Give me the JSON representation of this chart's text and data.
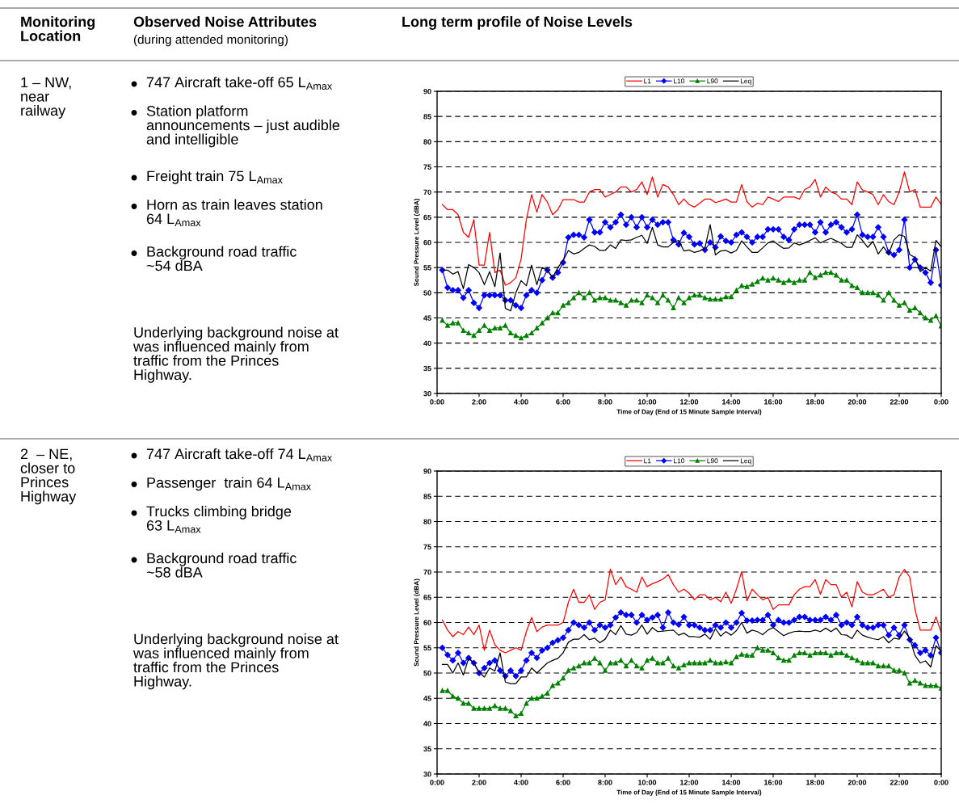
{
  "chart_data": [
    {
      "type": "other",
      "annotations": [
        "Monitoring\nLocation",
        "Observed Noise Attributes",
        "(during attended monitoring)",
        "Long term profile of Noise Levels"
      ]
    },
    {
      "type": "line",
      "xlabel": "Time of Day (End of 15 Minute Sample Interval)",
      "ylabel": "Sound Pressure Level (dBA)",
      "annotations": [
        "1 – NW,\nnear\nrailway",
        "747 Aircraft take-off 65 L$_{Amax}$",
        "Station platform\nannouncements – just audible\nand intelligible",
        "Freight train 75 L$_{Amax}$",
        "Horn as train leaves station\n64 L$_{Amax}$",
        "Background road traffic\n~54 dBA",
        "Underlying background noise at\nwas influenced mainly from\ntraffic from the Princes\nHighway."
      ],
      "x": [
        0.25,
        0.5,
        0.75,
        1,
        1.25,
        1.5,
        1.75,
        2,
        2.25,
        2.5,
        2.75,
        3,
        3.25,
        3.5,
        3.75,
        4,
        4.25,
        4.5,
        4.75,
        5,
        5.25,
        5.5,
        5.75,
        6,
        6.25,
        6.5,
        6.75,
        7,
        7.25,
        7.5,
        7.75,
        8,
        8.25,
        8.5,
        8.75,
        9,
        9.25,
        9.5,
        9.75,
        10,
        10.25,
        10.5,
        10.75,
        11,
        11.25,
        11.5,
        11.75,
        12,
        12.25,
        12.5,
        12.75,
        13,
        13.25,
        13.5,
        13.75,
        14,
        14.25,
        14.5,
        14.75,
        15,
        15.25,
        15.5,
        15.75,
        16,
        16.25,
        16.5,
        16.75,
        17,
        17.25,
        17.5,
        17.75,
        18,
        18.25,
        18.5,
        18.75,
        19,
        19.25,
        19.5,
        19.75,
        20,
        20.25,
        20.5,
        20.75,
        21,
        21.25,
        21.5,
        21.75,
        22,
        22.25,
        22.5,
        22.75,
        23,
        23.25,
        23.5,
        23.75,
        24
      ],
      "xlim": [
        0,
        24
      ],
      "xticks": [
        {
          "value": 0,
          "label": "0:00"
        },
        {
          "value": 2,
          "label": "2:00"
        },
        {
          "value": 4,
          "label": "4:00"
        },
        {
          "value": 6,
          "label": "6:00"
        },
        {
          "value": 8,
          "label": "8:00"
        },
        {
          "value": 10,
          "label": "10:00"
        },
        {
          "value": 12,
          "label": "12:00"
        },
        {
          "value": 14,
          "label": "14:00"
        },
        {
          "value": 16,
          "label": "16:00"
        },
        {
          "value": 18,
          "label": "18:00"
        },
        {
          "value": 20,
          "label": "20:00"
        },
        {
          "value": 22,
          "label": "22:00"
        },
        {
          "value": 24,
          "label": "0:00"
        }
      ],
      "ylim": [
        30,
        90
      ],
      "yticks": [
        30,
        35,
        40,
        45,
        50,
        55,
        60,
        65,
        70,
        75,
        80,
        85,
        90
      ],
      "grid": "y",
      "legend": "top",
      "series": [
        {
          "name": "L1",
          "color": "#ff0000",
          "values": [
            67.5,
            66.5,
            66.5,
            65.5,
            62,
            61,
            64.5,
            55.5,
            55.5,
            62,
            54,
            54.5,
            51.5,
            52,
            53,
            56.7,
            64.5,
            69.5,
            66,
            69.5,
            68,
            65.5,
            66.5,
            68.5,
            68.5,
            68.5,
            68,
            68,
            70,
            70.5,
            70.5,
            69,
            69.5,
            70,
            71,
            71,
            70,
            70.5,
            72,
            69.5,
            73,
            69,
            71.5,
            71,
            69.5,
            67.5,
            68.6,
            67.5,
            67,
            67.8,
            68.6,
            68.6,
            67.9,
            68.2,
            68.6,
            68,
            68,
            71.5,
            68.1,
            67,
            67.8,
            67.5,
            69,
            68.6,
            68.1,
            69,
            69,
            69,
            68.6,
            70.5,
            71,
            72.5,
            69,
            71,
            70,
            69.6,
            68.6,
            68.6,
            67.5,
            72,
            70.4,
            70,
            69.5,
            67.5,
            69.5,
            68.1,
            67.5,
            70,
            74,
            70,
            70.5,
            67,
            67,
            67,
            69,
            67.5
          ]
        },
        {
          "name": "L10",
          "color": "#0000ff",
          "marker": "diamond",
          "values": [
            54.5,
            51,
            50.5,
            50.5,
            49,
            50.5,
            48,
            47,
            49.5,
            49.5,
            49.5,
            49.5,
            48.5,
            48.5,
            47.5,
            47,
            49.5,
            50.5,
            50,
            52.5,
            54.5,
            53,
            54,
            56,
            61,
            61.5,
            61.5,
            61,
            64.5,
            62,
            62,
            64,
            63,
            64,
            65.5,
            63.5,
            65,
            63,
            65,
            63,
            64.5,
            63.5,
            64,
            64,
            60.5,
            59.6,
            61.9,
            61.1,
            59.6,
            59.8,
            58.5,
            60,
            59,
            61.2,
            60.3,
            60,
            61.5,
            62,
            61.1,
            60,
            61.1,
            61.1,
            62.6,
            62.6,
            62.6,
            61.1,
            60.5,
            62.6,
            63.5,
            63.5,
            63.5,
            62,
            64,
            62,
            63.5,
            64,
            63,
            62,
            62.6,
            65.5,
            61.5,
            61.1,
            61.1,
            63,
            61.1,
            58,
            57.5,
            58.5,
            64.5,
            55,
            56.6,
            55,
            54,
            52,
            58.5,
            51.5
          ]
        },
        {
          "name": "L90",
          "color": "#008000",
          "marker": "triangle",
          "values": [
            44.5,
            43.5,
            44,
            44,
            42.5,
            42,
            41.5,
            42.5,
            43.5,
            42.5,
            43,
            43,
            43.5,
            42,
            41.5,
            41,
            41.5,
            42,
            43,
            44,
            45,
            46,
            46,
            47.5,
            48,
            49,
            50,
            49,
            50,
            48.5,
            49,
            49,
            48.5,
            48.5,
            48,
            47.5,
            48.5,
            48.5,
            48,
            49.5,
            49,
            48,
            49.5,
            48.5,
            47,
            49,
            48,
            49,
            49.5,
            49.5,
            49,
            48.7,
            48.7,
            48.7,
            49.2,
            49.2,
            50.5,
            51.4,
            51.2,
            51.7,
            52.2,
            52.9,
            52.5,
            52.9,
            52.5,
            52,
            52.5,
            52,
            52.5,
            52.5,
            54,
            53,
            53.5,
            54,
            54,
            53.5,
            52.5,
            52.5,
            51.4,
            51,
            50,
            50,
            50,
            49.5,
            48.5,
            50,
            48.5,
            47.5,
            48,
            46.5,
            47,
            46,
            45,
            44.5,
            45.4,
            43.4
          ]
        },
        {
          "name": "Leq",
          "color": "#000000",
          "values": [
            54.5,
            54.5,
            53.7,
            54.2,
            50.8,
            55.6,
            55,
            54,
            51.6,
            54.2,
            51.2,
            57.9,
            46.9,
            46.4,
            50,
            52.4,
            51.4,
            55.5,
            51.6,
            55,
            54.5,
            53,
            55,
            56.4,
            58.4,
            57.7,
            58,
            58.8,
            59.5,
            59.2,
            58.4,
            58.4,
            59.5,
            58.8,
            60.5,
            60.4,
            60.5,
            61,
            61.4,
            59.8,
            63,
            59.5,
            59.1,
            59.1,
            60,
            60.4,
            58.3,
            58.5,
            58,
            58.3,
            58.9,
            63.5,
            57.5,
            58.3,
            58.4,
            57.9,
            58.4,
            60.3,
            59.1,
            58,
            58,
            58.9,
            59.9,
            60.3,
            59.5,
            58.8,
            58.9,
            59.9,
            59.5,
            59.9,
            60.4,
            60.9,
            59.9,
            60.4,
            60.8,
            60.3,
            59.8,
            59,
            59,
            61.5,
            60.4,
            59,
            60.2,
            57.7,
            59.1,
            57.7,
            60.5,
            61.5,
            61.2,
            57.6,
            57,
            54.2,
            55,
            54.3,
            60.4,
            59.1
          ]
        }
      ]
    },
    {
      "type": "line",
      "xlabel": "Time of Day (End of 15 Minute Sample Interval)",
      "ylabel": "Sound Pressure Level (dBA)",
      "annotations": [
        "2  – NE,\ncloser to\nPrinces\nHighway",
        "747 Aircraft take-off 74 L$_{Amax}$",
        "Passenger  train 64 L$_{Amax}$",
        "Trucks climbing bridge\n63 L$_{Amax}$",
        "Background road traffic\n~58 dBA",
        "Underlying background noise at\nwas influenced mainly from\ntraffic from the Princes\nHighway."
      ],
      "x": [
        0.25,
        0.5,
        0.75,
        1,
        1.25,
        1.5,
        1.75,
        2,
        2.25,
        2.5,
        2.75,
        3,
        3.25,
        3.5,
        3.75,
        4,
        4.25,
        4.5,
        4.75,
        5,
        5.25,
        5.5,
        5.75,
        6,
        6.25,
        6.5,
        6.75,
        7,
        7.25,
        7.5,
        7.75,
        8,
        8.25,
        8.5,
        8.75,
        9,
        9.25,
        9.5,
        9.75,
        10,
        10.25,
        10.5,
        10.75,
        11,
        11.25,
        11.5,
        11.75,
        12,
        12.25,
        12.5,
        12.75,
        13,
        13.25,
        13.5,
        13.75,
        14,
        14.25,
        14.5,
        14.75,
        15,
        15.25,
        15.5,
        15.75,
        16,
        16.25,
        16.5,
        16.75,
        17,
        17.25,
        17.5,
        17.75,
        18,
        18.25,
        18.5,
        18.75,
        19,
        19.25,
        19.5,
        19.75,
        20,
        20.25,
        20.5,
        20.75,
        21,
        21.25,
        21.5,
        21.75,
        22,
        22.25,
        22.5,
        22.75,
        23,
        23.25,
        23.5,
        23.75,
        24
      ],
      "xlim": [
        0,
        24
      ],
      "xticks": [
        {
          "value": 0,
          "label": "0:00"
        },
        {
          "value": 2,
          "label": "2:00"
        },
        {
          "value": 4,
          "label": "4:00"
        },
        {
          "value": 6,
          "label": "6:00"
        },
        {
          "value": 8,
          "label": "8:00"
        },
        {
          "value": 10,
          "label": "10:00"
        },
        {
          "value": 12,
          "label": "12:00"
        },
        {
          "value": 14,
          "label": "14:00"
        },
        {
          "value": 16,
          "label": "16:00"
        },
        {
          "value": 18,
          "label": "18:00"
        },
        {
          "value": 20,
          "label": "20:00"
        },
        {
          "value": 22,
          "label": "22:00"
        },
        {
          "value": 24,
          "label": "0:00"
        }
      ],
      "ylim": [
        30,
        90
      ],
      "yticks": [
        30,
        35,
        40,
        45,
        50,
        55,
        60,
        65,
        70,
        75,
        80,
        85,
        90
      ],
      "grid": "y",
      "legend": "top",
      "series": [
        {
          "name": "L1",
          "color": "#ff0000",
          "values": [
            60.5,
            58.5,
            57.2,
            58.2,
            57.6,
            59.1,
            57.6,
            59.5,
            54.5,
            58.5,
            55.6,
            54.5,
            54,
            54.5,
            55,
            54.5,
            58.2,
            61,
            58.2,
            59.1,
            59.5,
            59.5,
            59.5,
            60,
            64,
            66.6,
            64,
            64,
            65.5,
            62.6,
            64,
            64.5,
            70.6,
            67.5,
            69,
            67.1,
            66.6,
            66,
            69,
            67.1,
            67.7,
            68.1,
            68.6,
            69.5,
            67.5,
            66,
            66.6,
            65.8,
            64.5,
            65.5,
            65.5,
            64.5,
            65,
            64.1,
            66,
            63.8,
            66.6,
            70.1,
            64.3,
            66.6,
            65.5,
            64.5,
            65,
            62.6,
            63.5,
            63.5,
            63.5,
            65.5,
            66.6,
            67.1,
            67.1,
            68.5,
            65.6,
            68.5,
            67.5,
            67.5,
            65,
            66,
            63.1,
            68.1,
            66,
            65.5,
            65.5,
            66,
            66.6,
            65,
            65.5,
            69,
            70.5,
            69,
            62.6,
            58.5,
            58.5,
            58.5,
            61.1,
            58
          ]
        },
        {
          "name": "L10",
          "color": "#0000ff",
          "marker": "diamond",
          "values": [
            55,
            53.6,
            52.5,
            54,
            52,
            53,
            52,
            50,
            51,
            52,
            52.5,
            50.5,
            49.4,
            50.5,
            49.4,
            50.5,
            52.5,
            54,
            53,
            54.5,
            55,
            56,
            56.5,
            57,
            58.5,
            60,
            59.5,
            59,
            60,
            58.5,
            59.5,
            59,
            59.5,
            61,
            62,
            61.5,
            61.5,
            60,
            61.5,
            60.5,
            61,
            61.5,
            59,
            62,
            60,
            59.6,
            61.1,
            59.5,
            59.5,
            59,
            58.5,
            58.5,
            59.5,
            59,
            60,
            59,
            60,
            61.9,
            60.4,
            60.4,
            60.5,
            60.5,
            61.5,
            59.5,
            60.5,
            60,
            60,
            60.5,
            61.1,
            61.1,
            60.5,
            60.5,
            60.5,
            61.1,
            60.5,
            61.5,
            59.5,
            60,
            59.5,
            61.1,
            59.5,
            59,
            59,
            59.5,
            59.5,
            57.5,
            59,
            57.5,
            59.5,
            56.6,
            55.5,
            54,
            54.5,
            53.5,
            57,
            54
          ]
        },
        {
          "name": "L90",
          "color": "#008000",
          "marker": "triangle",
          "values": [
            46.5,
            46.5,
            45.4,
            45,
            44,
            44,
            43,
            43,
            43,
            43,
            43.5,
            43,
            43,
            42.5,
            41.5,
            42,
            44,
            45,
            45,
            45.4,
            46,
            47.5,
            48,
            49,
            50.5,
            51,
            51.4,
            52,
            52,
            52.9,
            52,
            50.5,
            52,
            52,
            52.5,
            51.4,
            52.5,
            51.4,
            51,
            52.5,
            52.9,
            52,
            52,
            52.9,
            51.4,
            51,
            51.6,
            52,
            52,
            52,
            52,
            52.5,
            52,
            52,
            52.2,
            52,
            53.2,
            53.7,
            53.5,
            53.5,
            55,
            54.5,
            54.5,
            54,
            53,
            52.5,
            52.5,
            53.5,
            54,
            54,
            53.5,
            54,
            54,
            54,
            53.5,
            54,
            54,
            53.5,
            53,
            52.5,
            52,
            52,
            52,
            51.4,
            51.4,
            51.4,
            50.5,
            50.5,
            50,
            48,
            48.5,
            48,
            47.5,
            47.5,
            47.5,
            47
          ]
        },
        {
          "name": "Leq",
          "color": "#000000",
          "values": [
            51.7,
            51.7,
            50,
            52,
            49.6,
            52.9,
            52,
            50.2,
            49.2,
            51,
            50.4,
            54,
            48.2,
            47.9,
            47.9,
            49.2,
            49.2,
            51,
            50,
            51,
            52,
            52.5,
            52.9,
            54,
            56.1,
            56.7,
            56.7,
            57.6,
            56.6,
            56.9,
            56,
            56.7,
            58.5,
            57.6,
            59.4,
            57.7,
            57.5,
            58,
            59.5,
            57.7,
            59,
            58.2,
            58.3,
            58.4,
            58.5,
            57.5,
            57.9,
            57.2,
            57.2,
            57.1,
            57.7,
            56.7,
            58.8,
            57.3,
            58.2,
            57.5,
            58.4,
            60,
            57.9,
            58.5,
            58.2,
            57.6,
            58.5,
            59,
            58.2,
            57.4,
            57.9,
            58.2,
            58.3,
            58.2,
            58.2,
            58.5,
            58.2,
            58.9,
            58.2,
            58.9,
            57.6,
            57.5,
            56.8,
            58.5,
            57.5,
            57.1,
            56.8,
            56.6,
            57.2,
            56,
            56.9,
            56.7,
            58.3,
            56.9,
            53.5,
            52,
            52.4,
            51.2,
            55.4,
            54.3
          ]
        }
      ]
    }
  ]
}
